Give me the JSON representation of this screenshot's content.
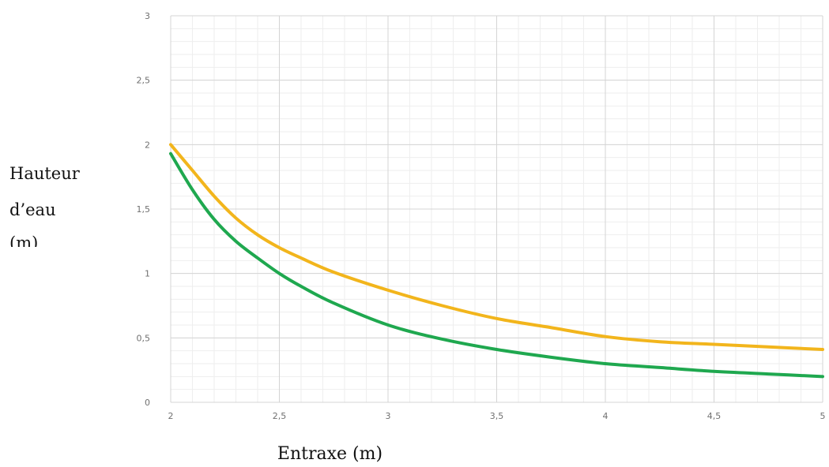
{
  "chart_data": {
    "type": "line",
    "title": "",
    "xlabel": "Entraxe  (m)",
    "ylabel_lines": [
      "Hauteur",
      "d’eau",
      "(m)"
    ],
    "xlim": [
      2,
      5
    ],
    "ylim": [
      0,
      3
    ],
    "x_ticks": [
      "2",
      "2,5",
      "3",
      "3,5",
      "4",
      "4,5",
      "5"
    ],
    "y_ticks": [
      "0",
      "0,5",
      "1",
      "1,5",
      "2",
      "2,5",
      "3"
    ],
    "grid": true,
    "legend": "none",
    "series": [
      {
        "color": "#F2B51C",
        "x": [
          2,
          2.1,
          2.2,
          2.3,
          2.4,
          2.5,
          2.6,
          2.75,
          3,
          3.25,
          3.5,
          3.75,
          4,
          4.25,
          4.5,
          4.75,
          5
        ],
        "y": [
          2.0,
          1.8,
          1.6,
          1.43,
          1.3,
          1.2,
          1.12,
          1.01,
          0.87,
          0.75,
          0.65,
          0.58,
          0.51,
          0.47,
          0.45,
          0.43,
          0.41
        ]
      },
      {
        "color": "#1FA84F",
        "x": [
          2,
          2.1,
          2.2,
          2.3,
          2.4,
          2.5,
          2.6,
          2.75,
          3,
          3.25,
          3.5,
          3.75,
          4,
          4.25,
          4.5,
          4.75,
          5
        ],
        "y": [
          1.93,
          1.65,
          1.42,
          1.25,
          1.12,
          1.0,
          0.9,
          0.77,
          0.6,
          0.49,
          0.41,
          0.35,
          0.3,
          0.27,
          0.24,
          0.22,
          0.2
        ]
      }
    ]
  }
}
